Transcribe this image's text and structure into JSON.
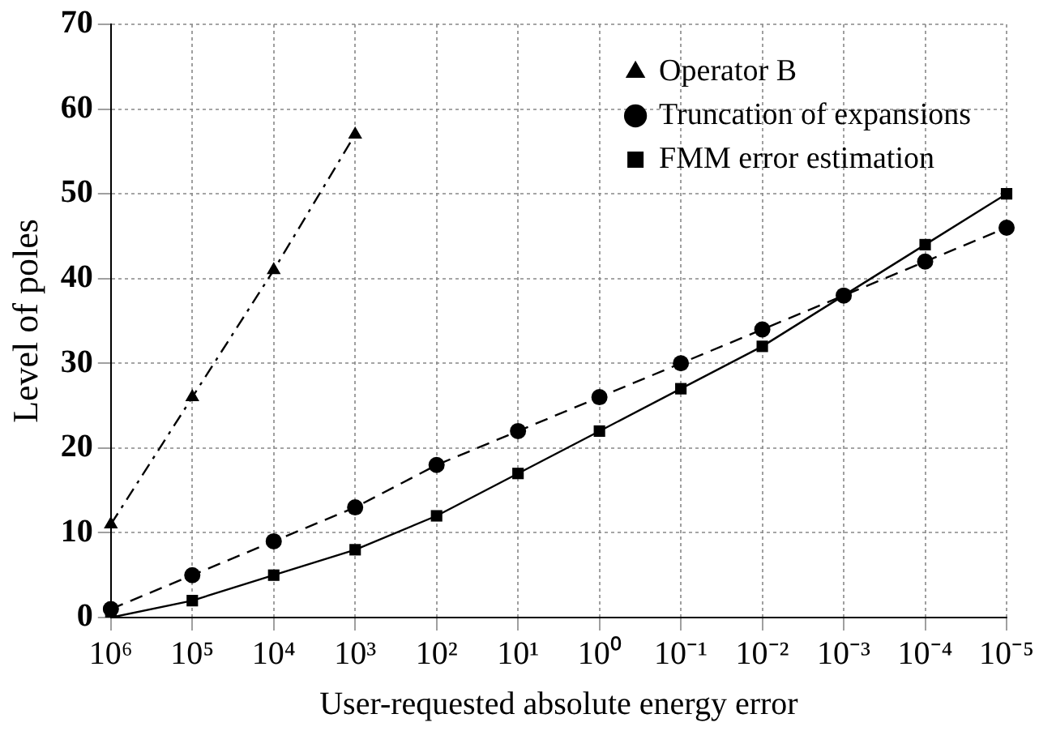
{
  "chart_data": {
    "type": "line",
    "xlabel": "User-requested absolute energy error",
    "ylabel": "Level of poles",
    "categories": [
      "10⁶",
      "10⁵",
      "10⁴",
      "10³",
      "10²",
      "10¹",
      "10⁰",
      "10⁻¹",
      "10⁻²",
      "10⁻³",
      "10⁻⁴",
      "10⁻⁵"
    ],
    "series": [
      {
        "name": "Operator B",
        "color": "#000000",
        "marker": "triangle",
        "line_style": "dashdot",
        "values": [
          11,
          26,
          41,
          57,
          null,
          null,
          null,
          null,
          null,
          null,
          null,
          null
        ]
      },
      {
        "name": "Truncation of expansions",
        "color": "#000000",
        "marker": "circle",
        "line_style": "dashed",
        "values": [
          1,
          5,
          9,
          13,
          18,
          22,
          26,
          30,
          34,
          38,
          42,
          46
        ]
      },
      {
        "name": "FMM error estimation",
        "color": "#000000",
        "marker": "square",
        "line_style": "solid",
        "values": [
          0,
          2,
          5,
          8,
          12,
          17,
          22,
          27,
          32,
          38,
          44,
          50
        ]
      }
    ],
    "ylim": [
      0,
      70
    ],
    "yticks": [
      0,
      10,
      20,
      30,
      40,
      50,
      60,
      70
    ],
    "grid": true,
    "legend": "top right"
  }
}
